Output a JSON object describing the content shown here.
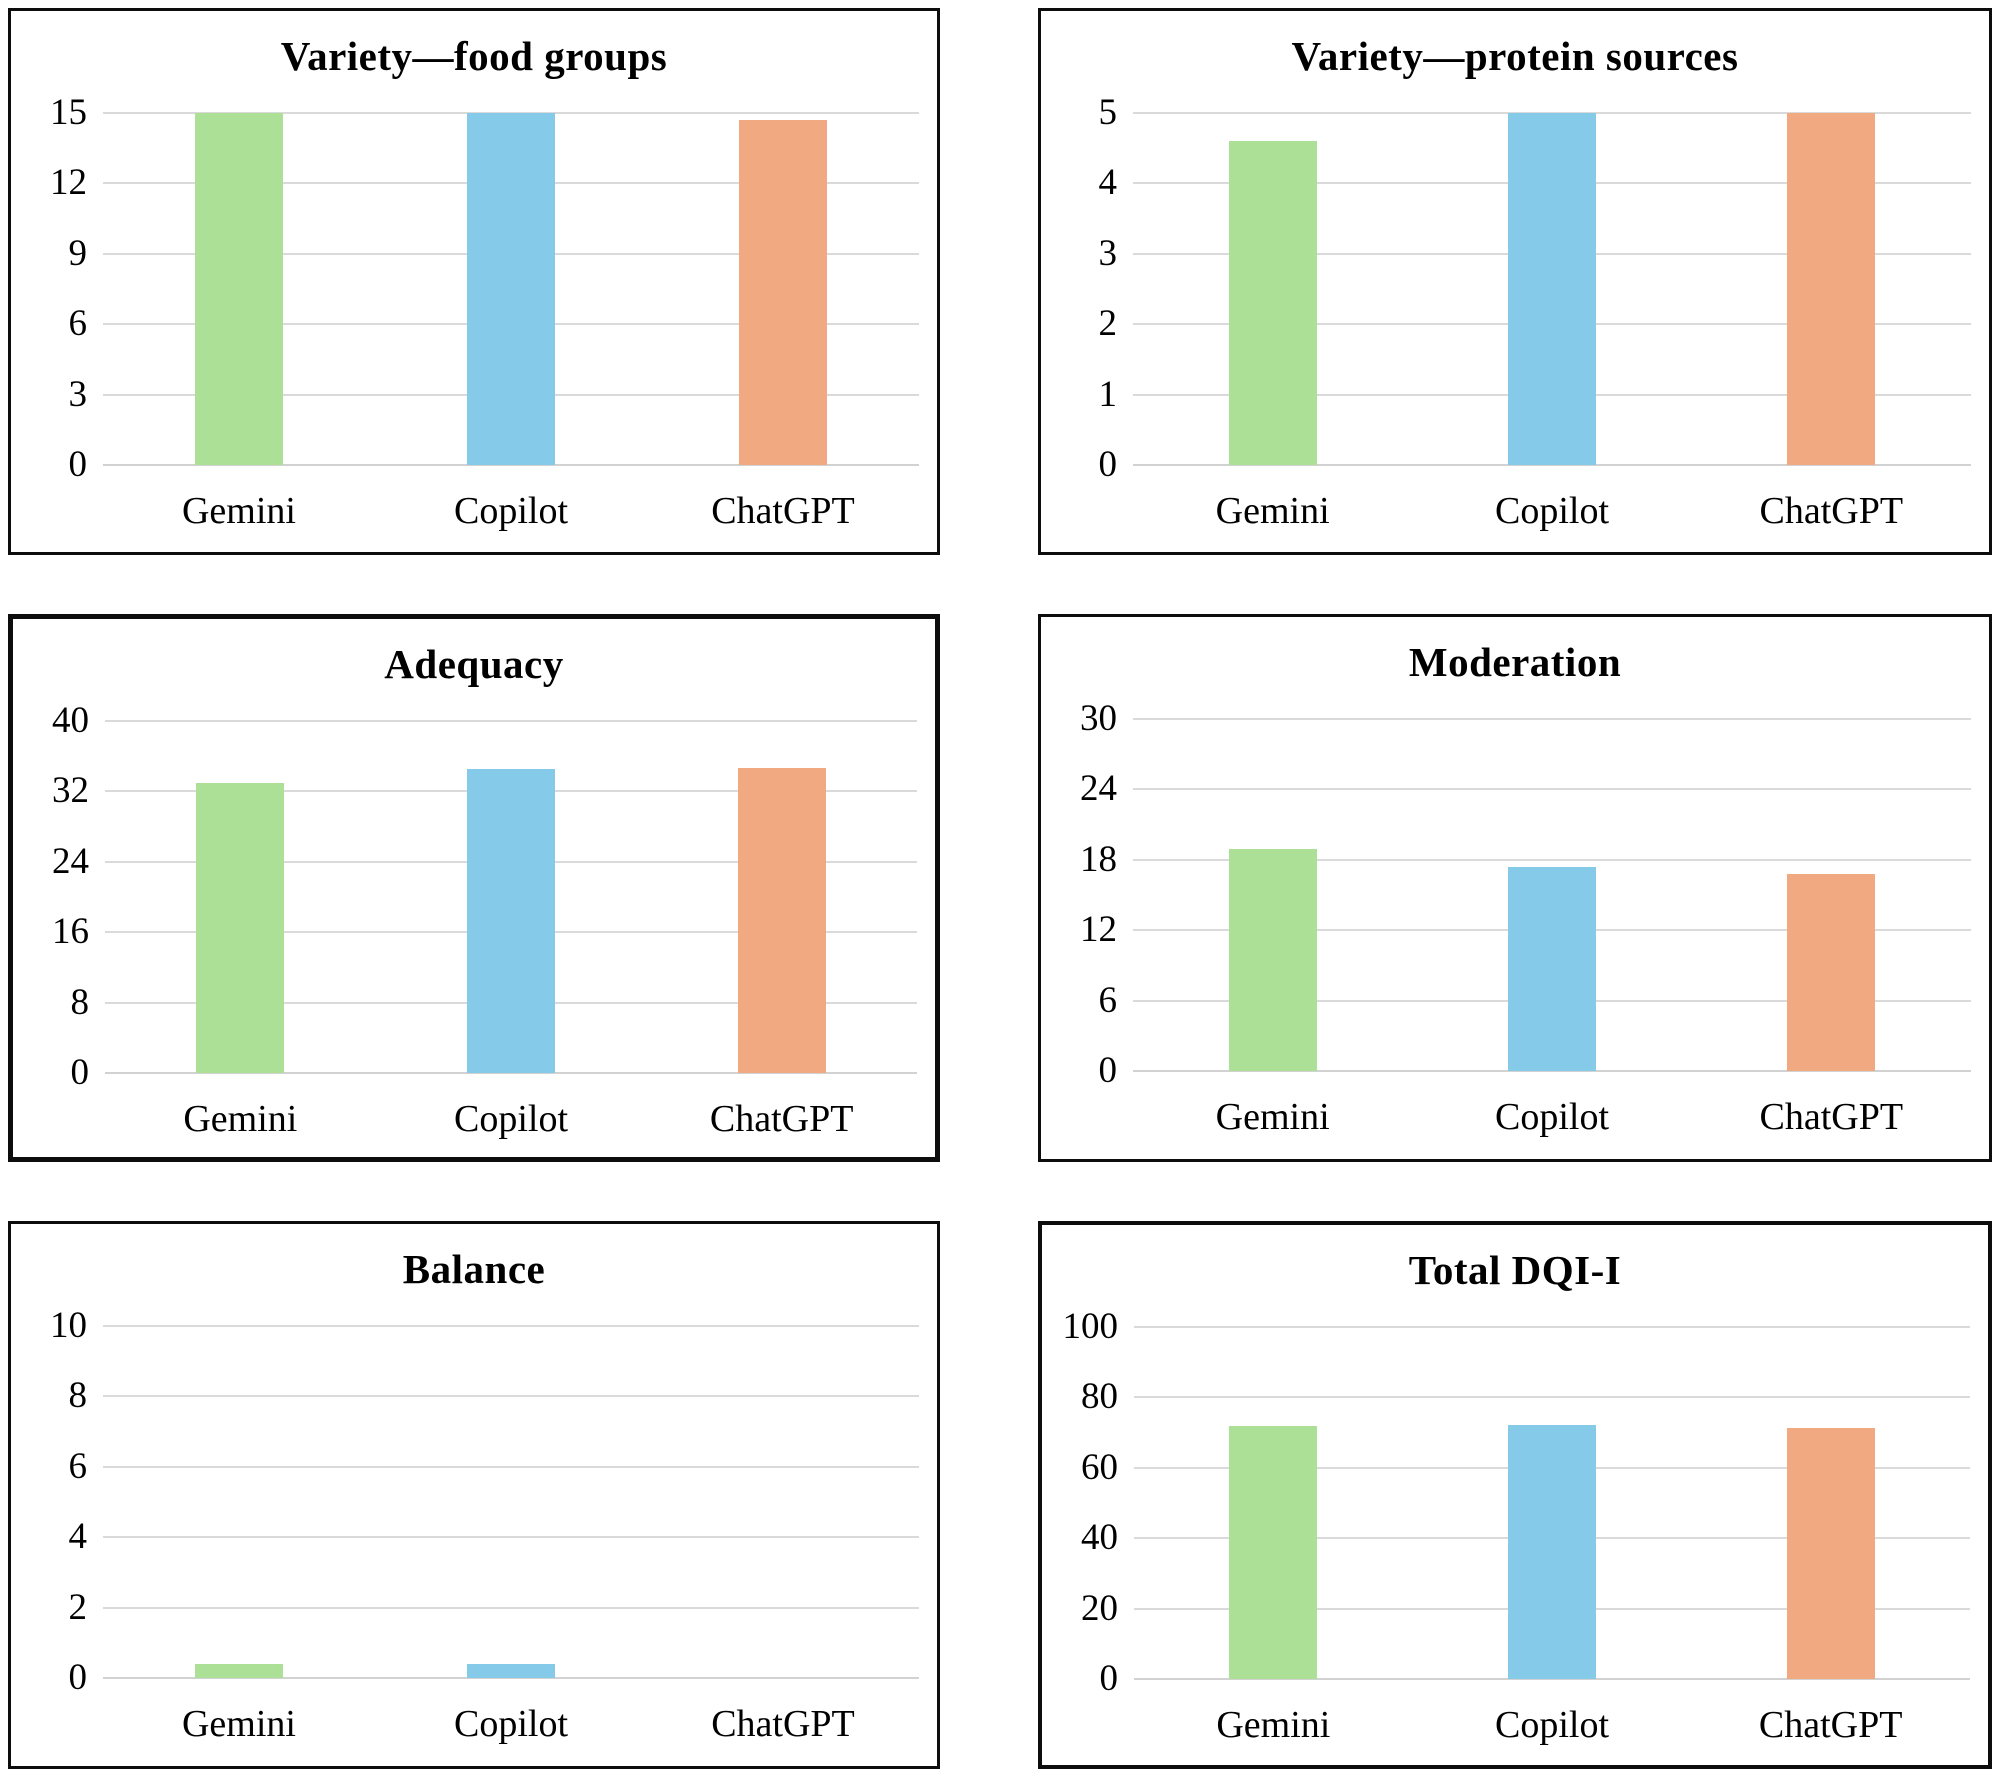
{
  "figure": {
    "layout": "2x3-grid-of-bar-charts",
    "background": "#ffffff",
    "panel_border_color": "#0d0d0d",
    "gridline_color": "#dadada"
  },
  "palette": {
    "series": [
      {
        "name": "Gemini",
        "color": "#abe096"
      },
      {
        "name": "Copilot",
        "color": "#85cbe9"
      },
      {
        "name": "ChatGPT",
        "color": "#f1a981"
      }
    ]
  },
  "chart_data": [
    {
      "type": "bar",
      "title": "Variety—food groups",
      "categories": [
        "Gemini",
        "Copilot",
        "ChatGPT"
      ],
      "values": [
        15,
        15,
        14.7
      ],
      "ylim": [
        0,
        15
      ],
      "yticks": [
        0,
        3,
        6,
        9,
        12,
        15
      ],
      "xlabel": "",
      "ylabel": "",
      "grid": "horizontal",
      "legend": "none"
    },
    {
      "type": "bar",
      "title": "Variety—protein sources",
      "categories": [
        "Gemini",
        "Copilot",
        "ChatGPT"
      ],
      "values": [
        4.6,
        5,
        5
      ],
      "ylim": [
        0,
        5
      ],
      "yticks": [
        0,
        1,
        2,
        3,
        4,
        5
      ],
      "xlabel": "",
      "ylabel": "",
      "grid": "horizontal",
      "legend": "none"
    },
    {
      "type": "bar",
      "title": "Adequacy",
      "categories": [
        "Gemini",
        "Copilot",
        "ChatGPT"
      ],
      "values": [
        33,
        34.5,
        34.7
      ],
      "ylim": [
        0,
        40
      ],
      "yticks": [
        0,
        8,
        16,
        24,
        32,
        40
      ],
      "xlabel": "",
      "ylabel": "",
      "grid": "horizontal",
      "legend": "none"
    },
    {
      "type": "bar",
      "title": "Moderation",
      "categories": [
        "Gemini",
        "Copilot",
        "ChatGPT"
      ],
      "values": [
        18.9,
        17.4,
        16.8
      ],
      "ylim": [
        0,
        30
      ],
      "yticks": [
        0,
        6,
        12,
        18,
        24,
        30
      ],
      "xlabel": "",
      "ylabel": "",
      "grid": "horizontal",
      "legend": "none"
    },
    {
      "type": "bar",
      "title": "Balance",
      "categories": [
        "Gemini",
        "Copilot",
        "ChatGPT"
      ],
      "values": [
        0.4,
        0.4,
        0
      ],
      "ylim": [
        0,
        10
      ],
      "yticks": [
        0,
        2,
        4,
        6,
        8,
        10
      ],
      "xlabel": "",
      "ylabel": "",
      "grid": "horizontal",
      "legend": "none"
    },
    {
      "type": "bar",
      "title": "Total DQI-I",
      "categories": [
        "Gemini",
        "Copilot",
        "ChatGPT"
      ],
      "values": [
        71.9,
        72.3,
        71.2
      ],
      "ylim": [
        0,
        100
      ],
      "yticks": [
        0,
        20,
        40,
        60,
        80,
        100
      ],
      "xlabel": "",
      "ylabel": "",
      "grid": "horizontal",
      "legend": "none"
    }
  ]
}
